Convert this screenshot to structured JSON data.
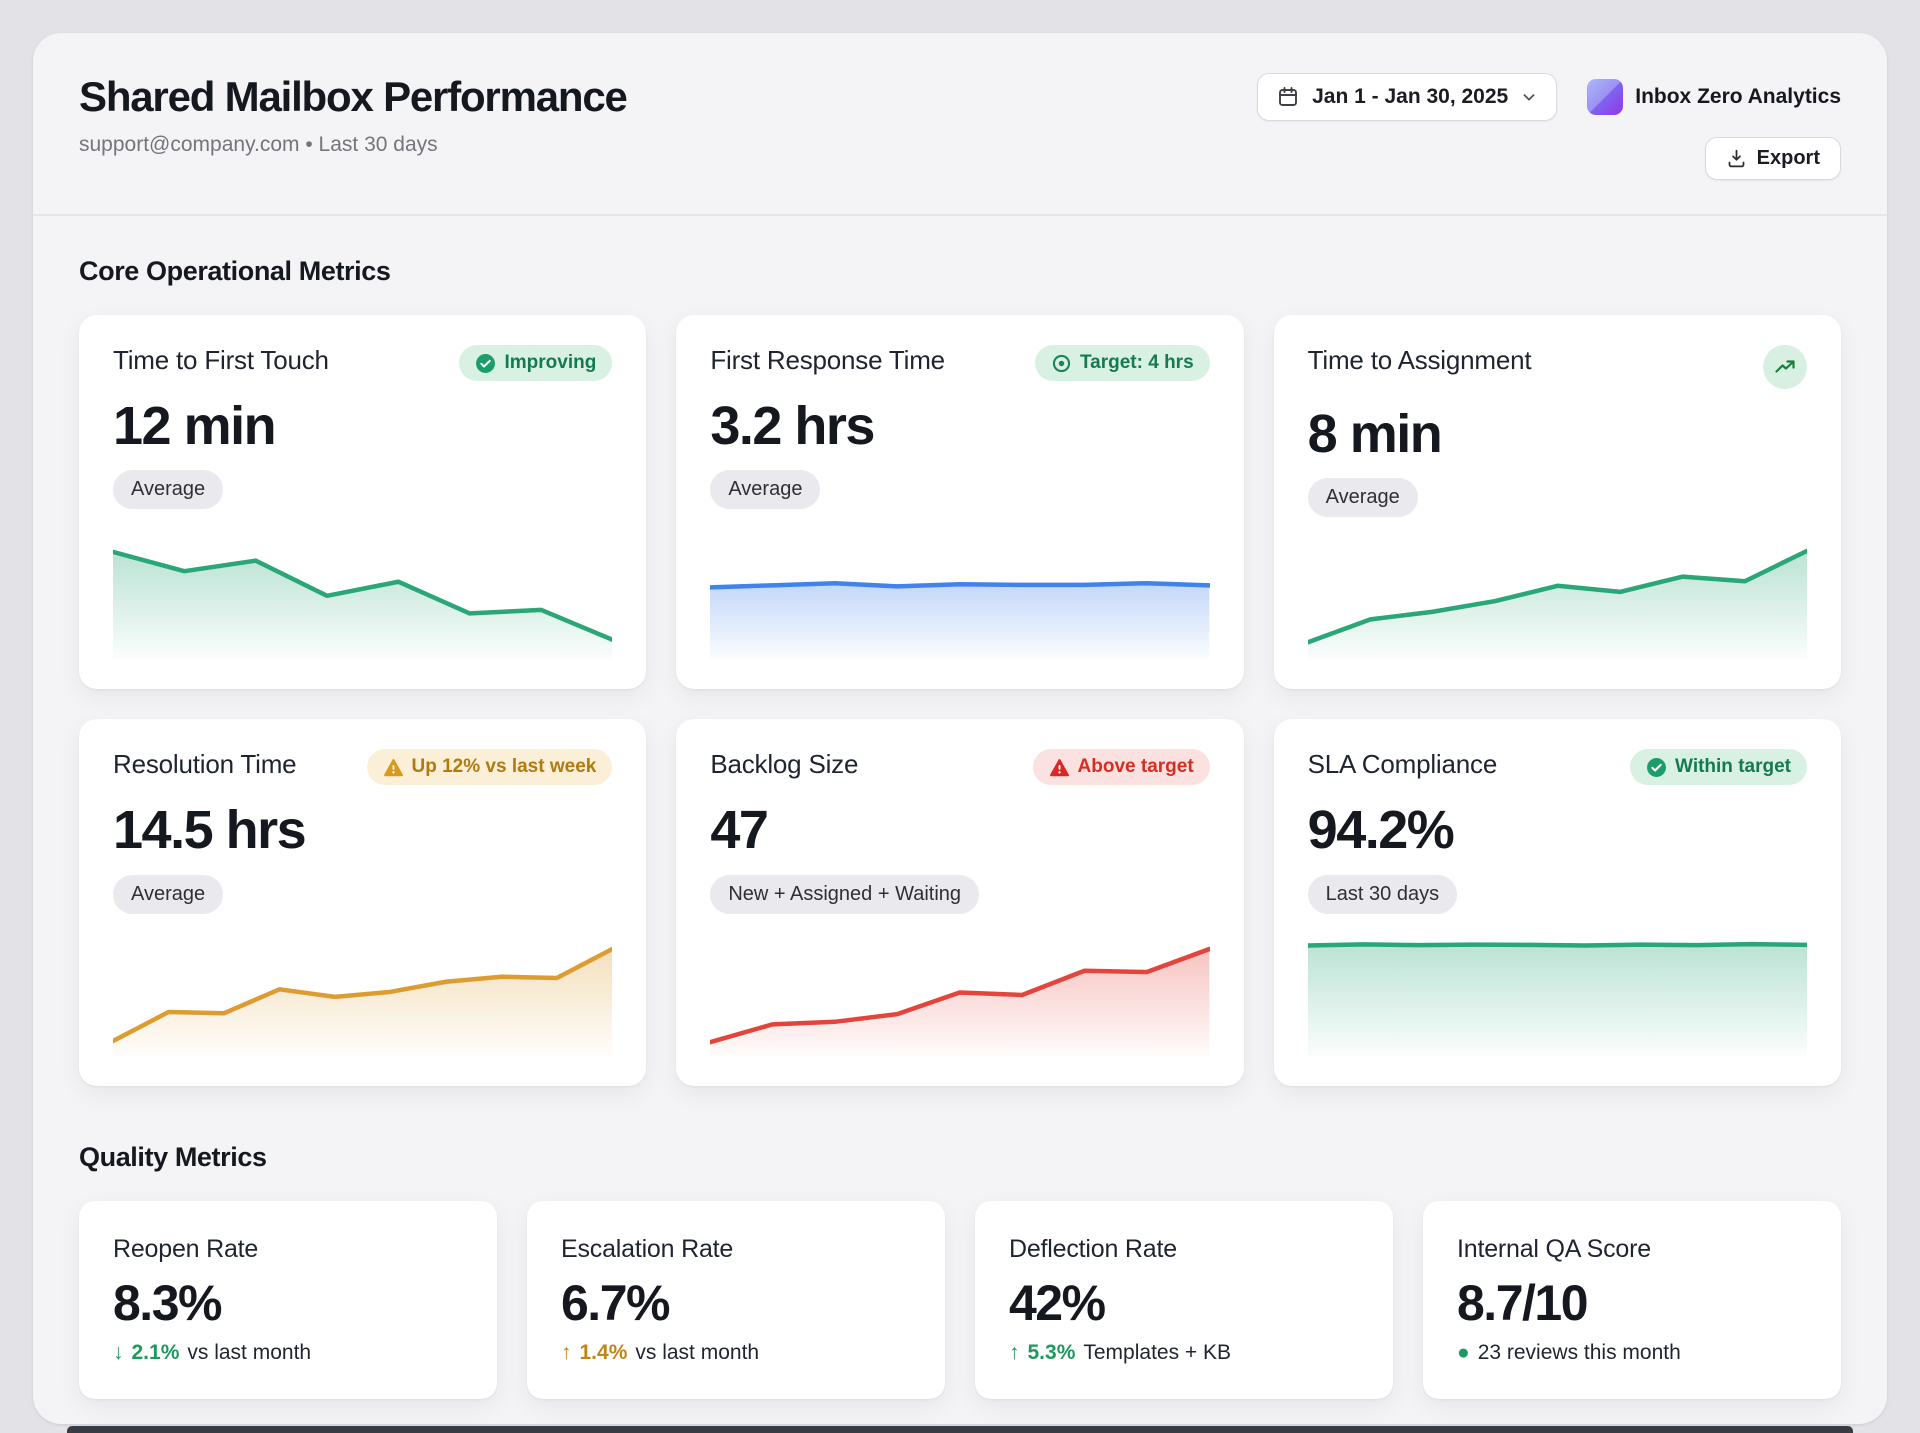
{
  "header": {
    "title": "Shared Mailbox Performance",
    "subtitle": "support@company.com • Last 30 days",
    "date_range": "Jan 1 - Jan 30, 2025",
    "brand": "Inbox Zero Analytics",
    "export_label": "Export"
  },
  "core": {
    "heading": "Core Operational Metrics",
    "cards": [
      {
        "title": "Time to First Touch",
        "badge": "Improving",
        "value": "12 min",
        "pill": "Average"
      },
      {
        "title": "First Response Time",
        "badge": "Target: 4 hrs",
        "value": "3.2 hrs",
        "pill": "Average"
      },
      {
        "title": "Time to Assignment",
        "value": "8 min",
        "pill": "Average"
      },
      {
        "title": "Resolution Time",
        "badge": "Up 12% vs last week",
        "value": "14.5 hrs",
        "pill": "Average"
      },
      {
        "title": "Backlog Size",
        "badge": "Above target",
        "value": "47",
        "pill": "New + Assigned + Waiting"
      },
      {
        "title": "SLA Compliance",
        "badge": "Within target",
        "value": "94.2%",
        "pill": "Last 30 days"
      }
    ]
  },
  "quality": {
    "heading": "Quality Metrics",
    "cards": [
      {
        "title": "Reopen Rate",
        "value": "8.3%",
        "trend_icon": "↓",
        "trend_value": "2.1%",
        "trend_label": "vs last month",
        "trend_color": "green"
      },
      {
        "title": "Escalation Rate",
        "value": "6.7%",
        "trend_icon": "↑",
        "trend_value": "1.4%",
        "trend_label": "vs last month",
        "trend_color": "amber"
      },
      {
        "title": "Deflection Rate",
        "value": "42%",
        "trend_icon": "↑",
        "trend_value": "5.3%",
        "trend_label": "Templates + KB",
        "trend_color": "green"
      },
      {
        "title": "Internal QA Score",
        "value": "8.7/10",
        "trend_icon": "●",
        "trend_value": "",
        "trend_label": "23 reviews this month",
        "trend_color": "green"
      }
    ]
  },
  "chart_data": [
    {
      "type": "area",
      "name": "Time to First Touch trend (min)",
      "color": "#2aa678",
      "values": [
        18,
        15.8,
        17.0,
        13.0,
        14.6,
        11.0,
        11.4,
        8.0
      ],
      "ylim": [
        6.5,
        19
      ]
    },
    {
      "type": "area",
      "name": "First Response Time trend (hrs)",
      "color": "#4282ec",
      "values": [
        3.1,
        3.2,
        3.3,
        3.15,
        3.25,
        3.22,
        3.22,
        3.3,
        3.2
      ],
      "ylim": [
        0,
        5.2
      ]
    },
    {
      "type": "area",
      "name": "Time to Assignment trend (min)",
      "color": "#2aa678",
      "values": [
        4.5,
        6.0,
        6.5,
        7.2,
        8.2,
        7.8,
        8.8,
        8.5,
        10.5
      ],
      "ylim": [
        3.8,
        11
      ]
    },
    {
      "type": "area",
      "name": "Resolution Time trend (hrs)",
      "color": "#dd9c30",
      "values": [
        2.5,
        4.8,
        4.7,
        6.6,
        6.0,
        6.4,
        7.2,
        7.6,
        7.5,
        9.8
      ],
      "ylim": [
        1.8,
        10.5
      ]
    },
    {
      "type": "area",
      "name": "Backlog Size trend (tickets)",
      "color": "#e3453c",
      "values": [
        2.0,
        3.4,
        3.6,
        4.2,
        5.9,
        5.7,
        7.6,
        7.5,
        9.3
      ],
      "ylim": [
        1.4,
        10
      ]
    },
    {
      "type": "area",
      "name": "SLA Compliance trend (%)",
      "color": "#2aa678",
      "values": [
        94.0,
        94.4,
        94.1,
        94.3,
        94.2,
        94.0,
        94.3,
        94.1,
        94.5,
        94.2
      ],
      "ylim": [
        55,
        96
      ]
    }
  ],
  "colors": {
    "success_text": "#157a50",
    "success_bg": "#d8f1e3",
    "success_icon": "#1b9d6a",
    "warning_text": "#b07a10",
    "warning_bg": "#fbf0d7",
    "warning_icon": "#d99a1a",
    "danger_text": "#d92d20",
    "danger_bg": "#fbe1e0",
    "danger_icon": "#dc2626",
    "accent_green": "#2aa678",
    "accent_blue": "#4282ec",
    "accent_amber": "#dd9c30",
    "accent_red": "#e3453c"
  }
}
